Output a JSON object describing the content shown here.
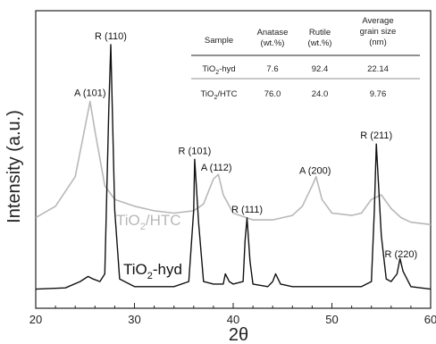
{
  "chart_data": {
    "type": "line",
    "xlabel": "2θ",
    "ylabel": "Intensity (a.u.)",
    "xlim": [
      20,
      60
    ],
    "xticks": [
      20,
      30,
      40,
      50,
      60
    ],
    "series": [
      {
        "name": "TiO2/HTC",
        "label_main": "TiO",
        "label_sub": "2",
        "label_tail": "/HTC",
        "color": "#b8b8b8",
        "x": [
          20,
          22,
          24,
          25,
          25.5,
          26,
          27,
          28,
          30,
          32,
          34,
          36,
          37,
          38,
          38.5,
          39,
          40,
          42,
          44,
          46,
          47,
          48,
          48.4,
          49,
          50,
          52,
          53,
          54,
          55,
          56,
          57,
          58,
          60
        ],
        "y": [
          0.28,
          0.33,
          0.46,
          0.68,
          0.79,
          0.66,
          0.42,
          0.36,
          0.33,
          0.31,
          0.3,
          0.31,
          0.34,
          0.45,
          0.47,
          0.38,
          0.3,
          0.27,
          0.27,
          0.29,
          0.33,
          0.42,
          0.46,
          0.36,
          0.3,
          0.29,
          0.3,
          0.36,
          0.38,
          0.32,
          0.28,
          0.26,
          0.25
        ]
      },
      {
        "name": "TiO2-hyd",
        "label_main": "TiO",
        "label_sub": "2",
        "label_tail": "-hyd",
        "color": "#111111",
        "x": [
          20,
          23,
          24.5,
          25.3,
          25.8,
          26.5,
          27,
          27.4,
          27.6,
          28,
          28.5,
          30,
          34,
          35.5,
          36,
          36.1,
          36.5,
          37,
          38,
          39,
          39.2,
          39.6,
          40,
          41,
          41.2,
          41.4,
          41.7,
          42,
          43.5,
          44,
          44.3,
          44.8,
          46,
          50,
          53,
          54,
          54.3,
          54.5,
          55,
          55.5,
          56,
          56.6,
          56.9,
          57.2,
          58,
          60
        ],
        "y": [
          0.04,
          0.045,
          0.07,
          0.09,
          0.08,
          0.07,
          0.1,
          0.75,
          1.0,
          0.35,
          0.08,
          0.05,
          0.05,
          0.07,
          0.35,
          0.55,
          0.3,
          0.07,
          0.06,
          0.06,
          0.1,
          0.07,
          0.06,
          0.07,
          0.23,
          0.32,
          0.15,
          0.06,
          0.05,
          0.07,
          0.1,
          0.06,
          0.05,
          0.05,
          0.05,
          0.07,
          0.35,
          0.61,
          0.25,
          0.08,
          0.07,
          0.1,
          0.16,
          0.11,
          0.05,
          0.04
        ]
      }
    ],
    "annotations": [
      {
        "text": "R (110)",
        "x": 27.6,
        "series": "hyd"
      },
      {
        "text": "A (101)",
        "x": 25.5,
        "series": "htc"
      },
      {
        "text": "R (101)",
        "x": 36.1,
        "series": "hyd"
      },
      {
        "text": "A (112)",
        "x": 38.3,
        "series": "htc"
      },
      {
        "text": "R (111)",
        "x": 41.4,
        "series": "hyd"
      },
      {
        "text": "A (200)",
        "x": 48.3,
        "series": "htc"
      },
      {
        "text": "R (211)",
        "x": 54.5,
        "series": "hyd"
      },
      {
        "text": "R (220)",
        "x": 57.0,
        "series": "hyd"
      }
    ],
    "table": {
      "headers": [
        {
          "lines": [
            "Sample"
          ]
        },
        {
          "lines": [
            "Anatase",
            "(wt.%)"
          ]
        },
        {
          "lines": [
            "Rutile",
            "(wt.%)"
          ]
        },
        {
          "lines": [
            "Average",
            "grain size",
            "(nm)"
          ]
        }
      ],
      "rows": [
        {
          "sample_main": "TiO",
          "sample_sub": "2",
          "sample_tail": "-hyd",
          "cells": [
            "7.6",
            "92.4",
            "22.14"
          ]
        },
        {
          "sample_main": "TiO",
          "sample_sub": "2",
          "sample_tail": "/HTC",
          "cells": [
            "76.0",
            "24.0",
            "9.76"
          ]
        }
      ]
    }
  }
}
